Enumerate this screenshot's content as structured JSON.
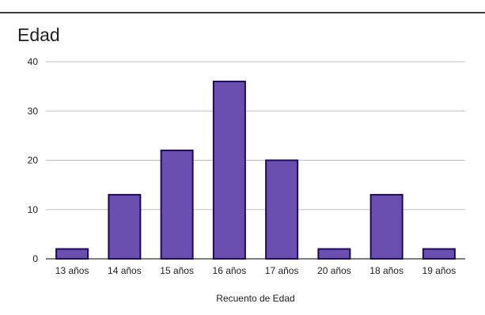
{
  "chart_data": {
    "type": "bar",
    "title": "Edad",
    "xlabel": "Recuento de Edad",
    "ylabel": "",
    "categories": [
      "13 años",
      "14 años",
      "15 años",
      "16 años",
      "17 años",
      "20 años",
      "18 años",
      "19 años"
    ],
    "values": [
      2,
      13,
      22,
      36,
      20,
      2,
      13,
      2
    ],
    "ylim": [
      0,
      40
    ],
    "yticks": [
      0,
      10,
      20,
      30,
      40
    ],
    "grid": true,
    "legend": "none",
    "colors": {
      "bar_fill": "#6a4fb0",
      "bar_stroke": "#1e0b55",
      "grid": "#bfbfbf",
      "axis": "#333333"
    }
  }
}
